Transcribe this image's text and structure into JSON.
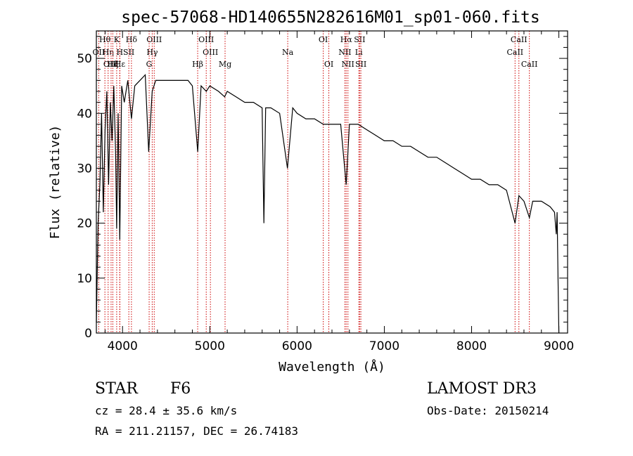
{
  "chart_data": {
    "type": "line",
    "title": "spec-57068-HD140655N282616M01_sp01-060.fits",
    "xlabel": "Wavelength (Å)",
    "ylabel": "Flux (relative)",
    "xlim": [
      3700,
      9100
    ],
    "ylim": [
      0,
      55
    ],
    "xticks": [
      4000,
      5000,
      6000,
      7000,
      8000,
      9000
    ],
    "yticks": [
      0,
      10,
      20,
      30,
      40,
      50
    ],
    "series": [
      {
        "name": "flux",
        "x": [
          3700,
          3720,
          3740,
          3760,
          3780,
          3800,
          3820,
          3840,
          3860,
          3880,
          3900,
          3920,
          3933,
          3950,
          3968,
          3990,
          4020,
          4060,
          4102,
          4140,
          4200,
          4260,
          4300,
          4340,
          4380,
          4450,
          4550,
          4650,
          4750,
          4800,
          4861,
          4900,
          4960,
          5000,
          5100,
          5170,
          5200,
          5300,
          5400,
          5500,
          5600,
          5620,
          5640,
          5700,
          5800,
          5890,
          5950,
          6000,
          6100,
          6200,
          6300,
          6400,
          6500,
          6563,
          6600,
          6700,
          6800,
          6900,
          7000,
          7100,
          7200,
          7300,
          7400,
          7500,
          7600,
          7700,
          7800,
          7900,
          8000,
          8100,
          8200,
          8300,
          8400,
          8498,
          8542,
          8600,
          8662,
          8700,
          8800,
          8900,
          8950,
          8970,
          8980,
          8990,
          9000
        ],
        "y": [
          2,
          20,
          27,
          40,
          22,
          37,
          44,
          27,
          42,
          35,
          45,
          33,
          19,
          40,
          17,
          45,
          42,
          46,
          39,
          45,
          46,
          47,
          33,
          44,
          46,
          46,
          46,
          46,
          46,
          45,
          33,
          45,
          44,
          45,
          44,
          43,
          44,
          43,
          42,
          42,
          41,
          20,
          41,
          41,
          40,
          30,
          41,
          40,
          39,
          39,
          38,
          38,
          38,
          27,
          38,
          38,
          37,
          36,
          35,
          35,
          34,
          34,
          33,
          32,
          32,
          31,
          30,
          29,
          28,
          28,
          27,
          27,
          26,
          20,
          25,
          24,
          21,
          24,
          24,
          23,
          22,
          18,
          22,
          10,
          0
        ]
      }
    ],
    "lines": [
      {
        "name": "OII",
        "wavelength": 3727,
        "row": 1
      },
      {
        "name": "Hθ",
        "wavelength": 3798,
        "row": 0
      },
      {
        "name": "Hη",
        "wavelength": 3835,
        "row": 1
      },
      {
        "name": "OIII",
        "wavelength": 3869,
        "row": 2
      },
      {
        "name": "Hζ",
        "wavelength": 3889,
        "row": 2
      },
      {
        "name": "K",
        "wavelength": 3933,
        "row": 0
      },
      {
        "name": "H",
        "wavelength": 3968,
        "row": 1
      },
      {
        "name": "Hδ",
        "wavelength": 4102,
        "row": 0
      },
      {
        "name": "SII",
        "wavelength": 4072,
        "row": 1
      },
      {
        "name": "Hε",
        "wavelength": 3970,
        "row": 2
      },
      {
        "name": "OIII",
        "wavelength": 4363,
        "row": 0
      },
      {
        "name": "Hγ",
        "wavelength": 4340,
        "row": 1
      },
      {
        "name": "G",
        "wavelength": 4305,
        "row": 2
      },
      {
        "name": "Hβ",
        "wavelength": 4861,
        "row": 2
      },
      {
        "name": "OIII",
        "wavelength": 4959,
        "row": 0
      },
      {
        "name": "OIII",
        "wavelength": 5007,
        "row": 1
      },
      {
        "name": "Mg",
        "wavelength": 5175,
        "row": 2
      },
      {
        "name": "Na",
        "wavelength": 5893,
        "row": 1
      },
      {
        "name": "OI",
        "wavelength": 6300,
        "row": 0
      },
      {
        "name": "OI",
        "wavelength": 6364,
        "row": 2
      },
      {
        "name": "Hα",
        "wavelength": 6563,
        "row": 0
      },
      {
        "name": "NII",
        "wavelength": 6548,
        "row": 1
      },
      {
        "name": "NII",
        "wavelength": 6583,
        "row": 2
      },
      {
        "name": "SII",
        "wavelength": 6717,
        "row": 0
      },
      {
        "name": "Li",
        "wavelength": 6708,
        "row": 1
      },
      {
        "name": "SII",
        "wavelength": 6731,
        "row": 2
      },
      {
        "name": "CaII",
        "wavelength": 8542,
        "row": 0
      },
      {
        "name": "CaII",
        "wavelength": 8498,
        "row": 1
      },
      {
        "name": "CaII",
        "wavelength": 8662,
        "row": 2
      }
    ],
    "line_color": "#cc0000"
  },
  "footer": {
    "class": "STAR",
    "subclass": "F6",
    "survey": "LAMOST DR3",
    "cz": "cz = 28.4 ± 35.6 km/s",
    "obs_date": "Obs-Date: 20150214",
    "coords": "RA = 211.21157, DEC =  26.74183"
  }
}
